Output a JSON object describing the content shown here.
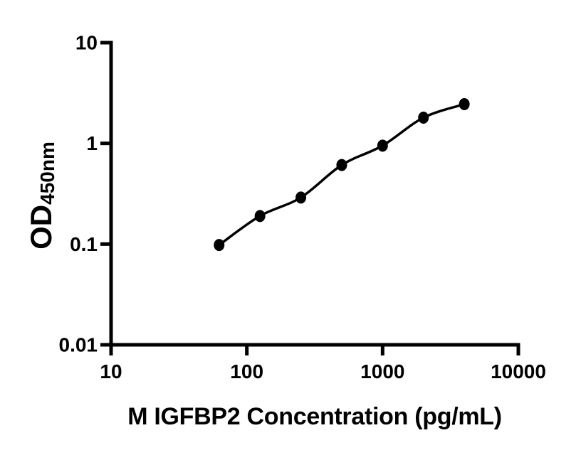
{
  "figure": {
    "background_color": "#ffffff"
  },
  "chart_data": {
    "type": "scatter",
    "title": "",
    "xlabel": "M IGFBP2 Concentration (pg/mL)",
    "ylabel_main": "OD",
    "ylabel_sub": "450nm",
    "x": [
      62.5,
      125,
      250,
      500,
      1000,
      2000,
      4000
    ],
    "y": [
      0.098,
      0.19,
      0.29,
      0.61,
      0.95,
      1.8,
      2.45
    ],
    "curve_type": "smooth-fit-line-through-points",
    "x_scale": "log10",
    "y_scale": "log10",
    "xlim": [
      10,
      10000
    ],
    "ylim": [
      0.01,
      10
    ],
    "x_tick_labels": [
      "10",
      "100",
      "1000",
      "10000"
    ],
    "y_tick_labels": [
      "10",
      "1",
      "0.1",
      "0.01"
    ],
    "grid": false,
    "legend": false,
    "marker": "filled-circle",
    "marker_color": "#000000",
    "line_color": "#000000",
    "axis_color": "#000000",
    "text_color": "#000000"
  }
}
